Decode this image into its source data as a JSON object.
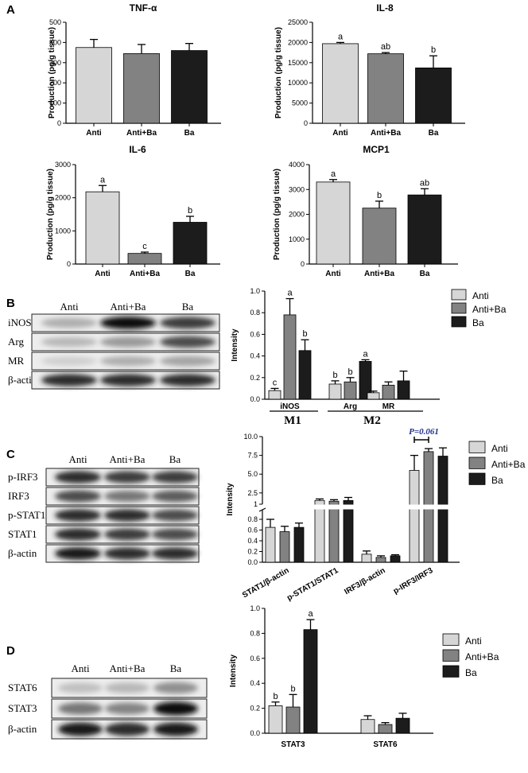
{
  "panels": [
    "A",
    "B",
    "C",
    "D"
  ],
  "colors": {
    "Anti": "#d6d6d6",
    "Anti+Ba": "#828282",
    "Ba": "#1c1c1c",
    "pvalue": "#1f2f8f"
  },
  "legend": [
    "Anti",
    "Anti+Ba",
    "Ba"
  ],
  "blots": {
    "B": {
      "lanes": [
        "Anti",
        "Anti+Ba",
        "Ba"
      ],
      "rows": [
        "iNOS",
        "Arg",
        "MR",
        "β-actin"
      ],
      "intensity": [
        [
          0.35,
          0.95,
          0.8
        ],
        [
          0.3,
          0.45,
          0.75
        ],
        [
          0.15,
          0.35,
          0.4
        ],
        [
          0.85,
          0.85,
          0.85
        ]
      ]
    },
    "C": {
      "lanes": [
        "Anti",
        "Anti+Ba",
        "Ba"
      ],
      "rows": [
        "p-IRF3",
        "IRF3",
        "p-STAT1",
        "STAT1",
        "β-actin"
      ],
      "intensity": [
        [
          0.85,
          0.8,
          0.8
        ],
        [
          0.75,
          0.6,
          0.7
        ],
        [
          0.85,
          0.85,
          0.75
        ],
        [
          0.85,
          0.8,
          0.75
        ],
        [
          0.9,
          0.85,
          0.85
        ]
      ]
    },
    "D": {
      "lanes": [
        "Anti",
        "Anti+Ba",
        "Ba"
      ],
      "rows": [
        "STAT6",
        "STAT3",
        "β-actin"
      ],
      "intensity": [
        [
          0.25,
          0.3,
          0.5
        ],
        [
          0.6,
          0.55,
          0.95
        ],
        [
          0.9,
          0.85,
          0.9
        ]
      ]
    }
  },
  "chart_data": [
    {
      "id": "A1",
      "type": "bar",
      "title": "TNF-α",
      "ylabel": "Production (pg/g tissue)",
      "categories": [
        "Anti",
        "Anti+Ba",
        "Ba"
      ],
      "values": [
        375,
        345,
        360
      ],
      "errors": [
        40,
        45,
        35
      ],
      "letters": [
        "",
        "",
        ""
      ],
      "ylim": [
        0,
        500
      ],
      "yticks": [
        0,
        100,
        200,
        300,
        400,
        500
      ]
    },
    {
      "id": "A2",
      "type": "bar",
      "title": "IL-8",
      "ylabel": "Production (pg/g tissue)",
      "categories": [
        "Anti",
        "Anti+Ba",
        "Ba"
      ],
      "values": [
        19700,
        17200,
        13700
      ],
      "errors": [
        300,
        300,
        3000
      ],
      "letters": [
        "a",
        "ab",
        "b"
      ],
      "ylim": [
        0,
        25000
      ],
      "yticks": [
        0,
        5000,
        10000,
        15000,
        20000,
        25000
      ]
    },
    {
      "id": "A3",
      "type": "bar",
      "title": "IL-6",
      "ylabel": "Production (pg/g tissue)",
      "categories": [
        "Anti",
        "Anti+Ba",
        "Ba"
      ],
      "values": [
        2180,
        320,
        1260
      ],
      "errors": [
        190,
        40,
        180
      ],
      "letters": [
        "a",
        "c",
        "b"
      ],
      "ylim": [
        0,
        3000
      ],
      "yticks": [
        0,
        1000,
        2000,
        3000
      ]
    },
    {
      "id": "A4",
      "type": "bar",
      "title": "MCP1",
      "ylabel": "Production (pg/g tissue)",
      "categories": [
        "Anti",
        "Anti+Ba",
        "Ba"
      ],
      "values": [
        3300,
        2250,
        2780
      ],
      "errors": [
        100,
        280,
        250
      ],
      "letters": [
        "a",
        "b",
        "ab"
      ],
      "ylim": [
        0,
        4000
      ],
      "yticks": [
        0,
        1000,
        2000,
        3000,
        4000
      ]
    },
    {
      "id": "B",
      "type": "bar",
      "ylabel": "Intensity",
      "categories": [
        "iNOS",
        "Arg",
        "MR"
      ],
      "supergroups": [
        {
          "label": "M1",
          "members": [
            "iNOS"
          ]
        },
        {
          "label": "M2",
          "members": [
            "Arg",
            "MR"
          ]
        }
      ],
      "series": [
        {
          "name": "Anti",
          "values": [
            0.08,
            0.14,
            0.06
          ],
          "errors": [
            0.02,
            0.03,
            0.015
          ]
        },
        {
          "name": "Anti+Ba",
          "values": [
            0.78,
            0.16,
            0.13
          ],
          "errors": [
            0.15,
            0.04,
            0.03
          ]
        },
        {
          "name": "Ba",
          "values": [
            0.45,
            0.35,
            0.17
          ],
          "errors": [
            0.1,
            0.015,
            0.09
          ]
        }
      ],
      "letters": [
        [
          "c",
          "a",
          "b"
        ],
        [
          "b",
          "b",
          "a"
        ],
        [
          "",
          "",
          ""
        ]
      ],
      "ylim": [
        0,
        1.0
      ],
      "yticks": [
        "0.0",
        "0.2",
        "0.4",
        "0.6",
        "0.8",
        "1.0"
      ]
    },
    {
      "id": "C",
      "type": "bar",
      "ylabel": "Intensity",
      "categories": [
        "STAT1/β-actin",
        "p-STAT1/STAT1",
        "IRF3/β-actin",
        "p-IRF3/IRF3"
      ],
      "series": [
        {
          "name": "Anti",
          "values": [
            0.65,
            1.5,
            0.15,
            5.5
          ],
          "errors": [
            0.15,
            0.2,
            0.06,
            2.0
          ]
        },
        {
          "name": "Anti+Ba",
          "values": [
            0.57,
            1.4,
            0.09,
            8.0
          ],
          "errors": [
            0.1,
            0.2,
            0.03,
            0.4
          ]
        },
        {
          "name": "Ba",
          "values": [
            0.65,
            1.5,
            0.12,
            7.4
          ],
          "errors": [
            0.08,
            0.4,
            0.02,
            1.1
          ]
        }
      ],
      "axis_break": true,
      "yticks_lower": [
        "0.0",
        "0.2",
        "0.4",
        "0.6",
        "0.8"
      ],
      "yticks_upper": [
        "1",
        "2.5",
        "5.0",
        "7.5",
        "10.0"
      ],
      "pvalue": {
        "label": "P=0.061",
        "between": [
          "Anti",
          "Anti+Ba"
        ],
        "category": "p-IRF3/IRF3"
      }
    },
    {
      "id": "D",
      "type": "bar",
      "ylabel": "Intensity",
      "categories": [
        "STAT3",
        "STAT6"
      ],
      "series": [
        {
          "name": "Anti",
          "values": [
            0.22,
            0.11
          ],
          "errors": [
            0.03,
            0.03
          ]
        },
        {
          "name": "Anti+Ba",
          "values": [
            0.21,
            0.07
          ],
          "errors": [
            0.1,
            0.015
          ]
        },
        {
          "name": "Ba",
          "values": [
            0.83,
            0.12
          ],
          "errors": [
            0.08,
            0.04
          ]
        }
      ],
      "letters": [
        [
          "b",
          "b",
          "a"
        ],
        [
          "",
          "",
          ""
        ]
      ],
      "ylim": [
        0,
        1.0
      ],
      "yticks": [
        "0.0",
        "0.2",
        "0.4",
        "0.6",
        "0.8",
        "1.0"
      ]
    }
  ]
}
